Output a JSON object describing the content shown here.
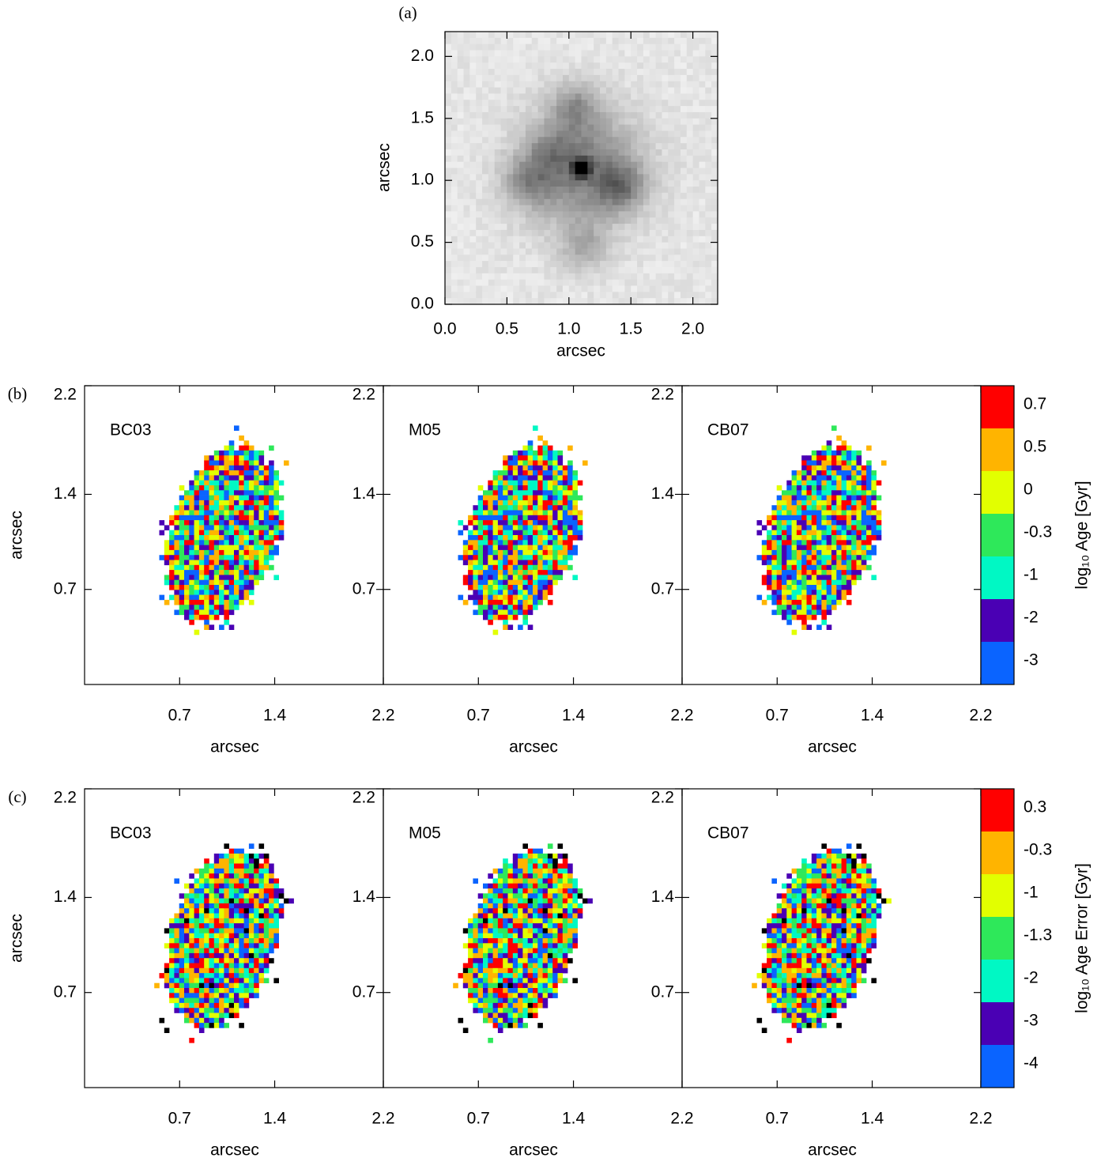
{
  "chart_data": [
    {
      "type": "image",
      "label": "(a)",
      "xlabel": "arcsec",
      "ylabel": "arcsec",
      "xlim": [
        0,
        2.2
      ],
      "ylim": [
        0,
        2.2
      ],
      "xticks": [
        {
          "value": 0,
          "label": "0.0"
        },
        0.5,
        {
          "value": 1,
          "label": "1.0"
        },
        1.5,
        {
          "value": 2,
          "label": "2.0"
        }
      ],
      "yticks": [
        {
          "value": 0,
          "label": "0.0"
        },
        0.5,
        {
          "value": 1,
          "label": "1.0"
        },
        1.5,
        {
          "value": 2,
          "label": "2.0"
        }
      ]
    },
    {
      "type": "pixel-map",
      "label": "(b)",
      "panels": [
        "BC03",
        "M05",
        "CB07"
      ],
      "xlabel": "arcsec",
      "ylabel": "arcsec",
      "xlim": [
        0,
        2.2
      ],
      "ylim": [
        0,
        2.2
      ],
      "xticks": [
        0.7,
        1.4,
        2.2
      ],
      "yticks": [
        0.7,
        1.4,
        2.2
      ],
      "colorbar": {
        "label": "log₁₀ Age [Gyr]",
        "ticks": [
          0.7,
          0.5,
          0,
          -0.3,
          -1,
          -2,
          -3
        ],
        "colors": [
          "#ff0000",
          "#ffb400",
          "#e2ff00",
          "#2ee85a",
          "#00f8c4",
          "#4a00b4",
          "#0a64ff"
        ]
      }
    },
    {
      "type": "pixel-map",
      "label": "(c)",
      "panels": [
        "BC03",
        "M05",
        "CB07"
      ],
      "xlabel": "arcsec",
      "ylabel": "arcsec",
      "xlim": [
        0,
        2.2
      ],
      "ylim": [
        0,
        2.2
      ],
      "xticks": [
        0.7,
        1.4,
        2.2
      ],
      "yticks": [
        0.7,
        1.4,
        2.2
      ],
      "colorbar": {
        "label": "log₁₀ Age Error [Gyr]",
        "ticks": [
          0.3,
          -0.3,
          -1,
          -1.3,
          -2,
          -3,
          -4
        ],
        "colors": [
          "#ff0000",
          "#ffb400",
          "#e2ff00",
          "#2ee85a",
          "#00f8c4",
          "#4a00b4",
          "#0a64ff"
        ]
      }
    }
  ]
}
